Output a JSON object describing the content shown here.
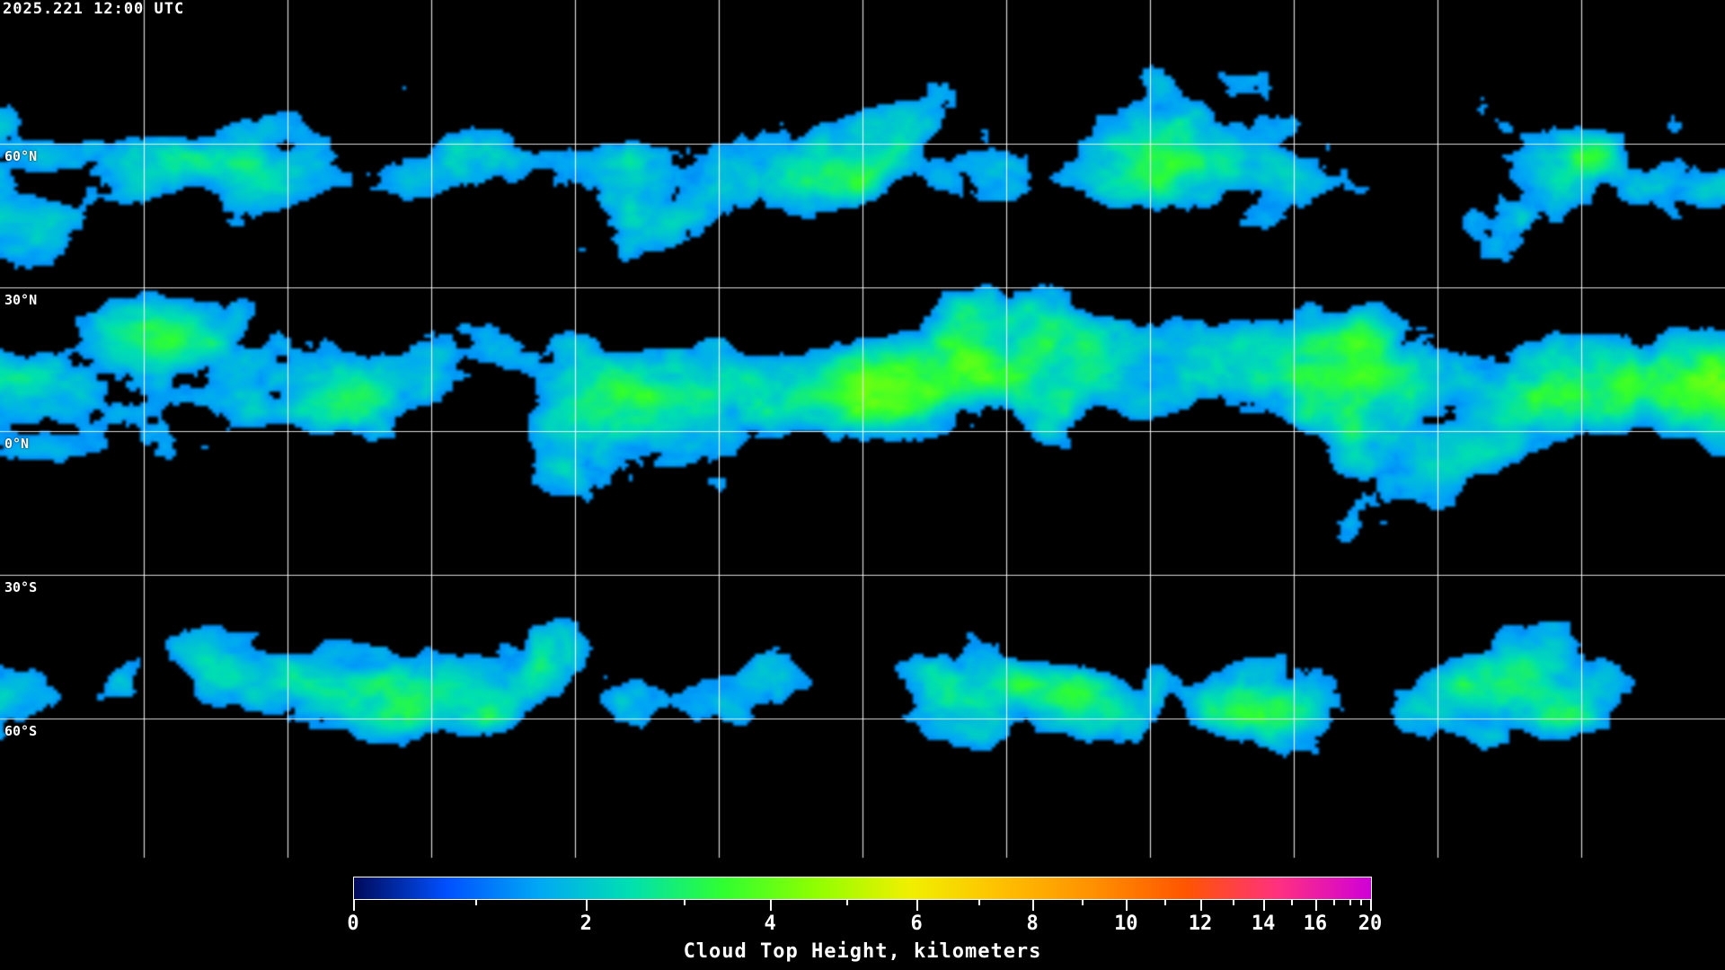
{
  "timestamp": "2025.221 12:00 UTC",
  "map": {
    "projection": "equirectangular",
    "background": "#000000",
    "coastline_color": "#ffffff",
    "gridline_color": "#ffffff",
    "latitude_labels": [
      "60°N",
      "30°N",
      "0°N",
      "30°S",
      "60°S"
    ]
  },
  "colorbar": {
    "label": "Cloud Top Height, kilometers",
    "min": 0,
    "max": 20,
    "tick_labels": [
      "0",
      "2",
      "4",
      "6",
      "8",
      "10",
      "12",
      "14",
      "16",
      "20"
    ],
    "colors": [
      "#000a5a",
      "#0050ff",
      "#00a8f5",
      "#00e0b0",
      "#30ff30",
      "#90ff00",
      "#f0f000",
      "#ffc000",
      "#ff9000",
      "#ff5500",
      "#ff3080",
      "#d000d8"
    ]
  }
}
